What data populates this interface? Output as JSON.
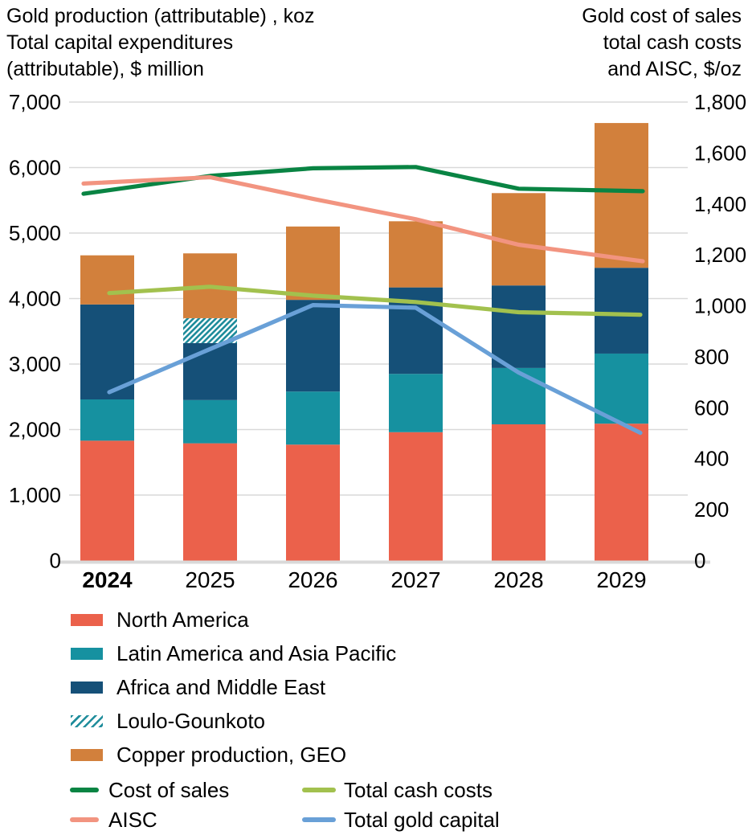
{
  "titles": {
    "left": [
      "Gold production (attributable) , koz",
      "Total capital expenditures",
      "(attributable), $ million"
    ],
    "right": [
      "Gold cost of sales",
      "total cash costs",
      "and AISC, $/oz"
    ]
  },
  "chart_data": {
    "type": "combo-stacked-bar-line",
    "categories": [
      "2024",
      "2025",
      "2026",
      "2027",
      "2028",
      "2029"
    ],
    "bold_category": "2024",
    "axes": {
      "left": {
        "min": 0,
        "max": 7000,
        "step": 1000,
        "label": "Gold production (attributable), koz / Total capital expenditures (attributable), $ million"
      },
      "right": {
        "min": 0,
        "max": 1800,
        "step": 200,
        "label": "Gold cost of sales, total cash costs and AISC, $/oz"
      }
    },
    "grid": true,
    "legend_position": "bottom",
    "series": [
      {
        "name": "North America",
        "color": "#EB614B",
        "axis": "left",
        "values": [
          1830,
          1790,
          1770,
          1960,
          2080,
          2090
        ]
      },
      {
        "name": "Latin America and Asia Pacific",
        "color": "#1691A0",
        "axis": "left",
        "values": [
          630,
          660,
          810,
          890,
          860,
          1070
        ]
      },
      {
        "name": "Africa and Middle East",
        "color": "#155078",
        "axis": "left",
        "values": [
          1450,
          870,
          1400,
          1320,
          1260,
          1310
        ]
      },
      {
        "name": "Loulo-Gounkoto",
        "color": "#1E8C9B",
        "pattern": "hatch",
        "axis": "left",
        "values": [
          0,
          380,
          0,
          0,
          0,
          0
        ]
      },
      {
        "name": "Copper production, GEO",
        "color": "#D2803C",
        "axis": "left",
        "values": [
          750,
          990,
          1120,
          1010,
          1410,
          2210
        ]
      }
    ],
    "lines": [
      {
        "name": "Cost of sales",
        "color": "#098443",
        "axis": "right",
        "values": [
          1440,
          1510,
          1540,
          1545,
          1460,
          1450
        ]
      },
      {
        "name": "AISC",
        "color": "#F29480",
        "axis": "right",
        "values": [
          1480,
          1505,
          1420,
          1340,
          1240,
          1175
        ]
      },
      {
        "name": "Total cash costs",
        "color": "#A2C14E",
        "axis": "right",
        "values": [
          1050,
          1075,
          1040,
          1015,
          975,
          965
        ]
      },
      {
        "name": "Total gold capital",
        "color": "#69A0D7",
        "axis": "left",
        "values": [
          2570,
          3230,
          3900,
          3860,
          2870,
          1950
        ]
      }
    ],
    "grid_color": "#D9D9D9",
    "baseline_color": "#D9D9D9",
    "text_color": "#000000"
  }
}
